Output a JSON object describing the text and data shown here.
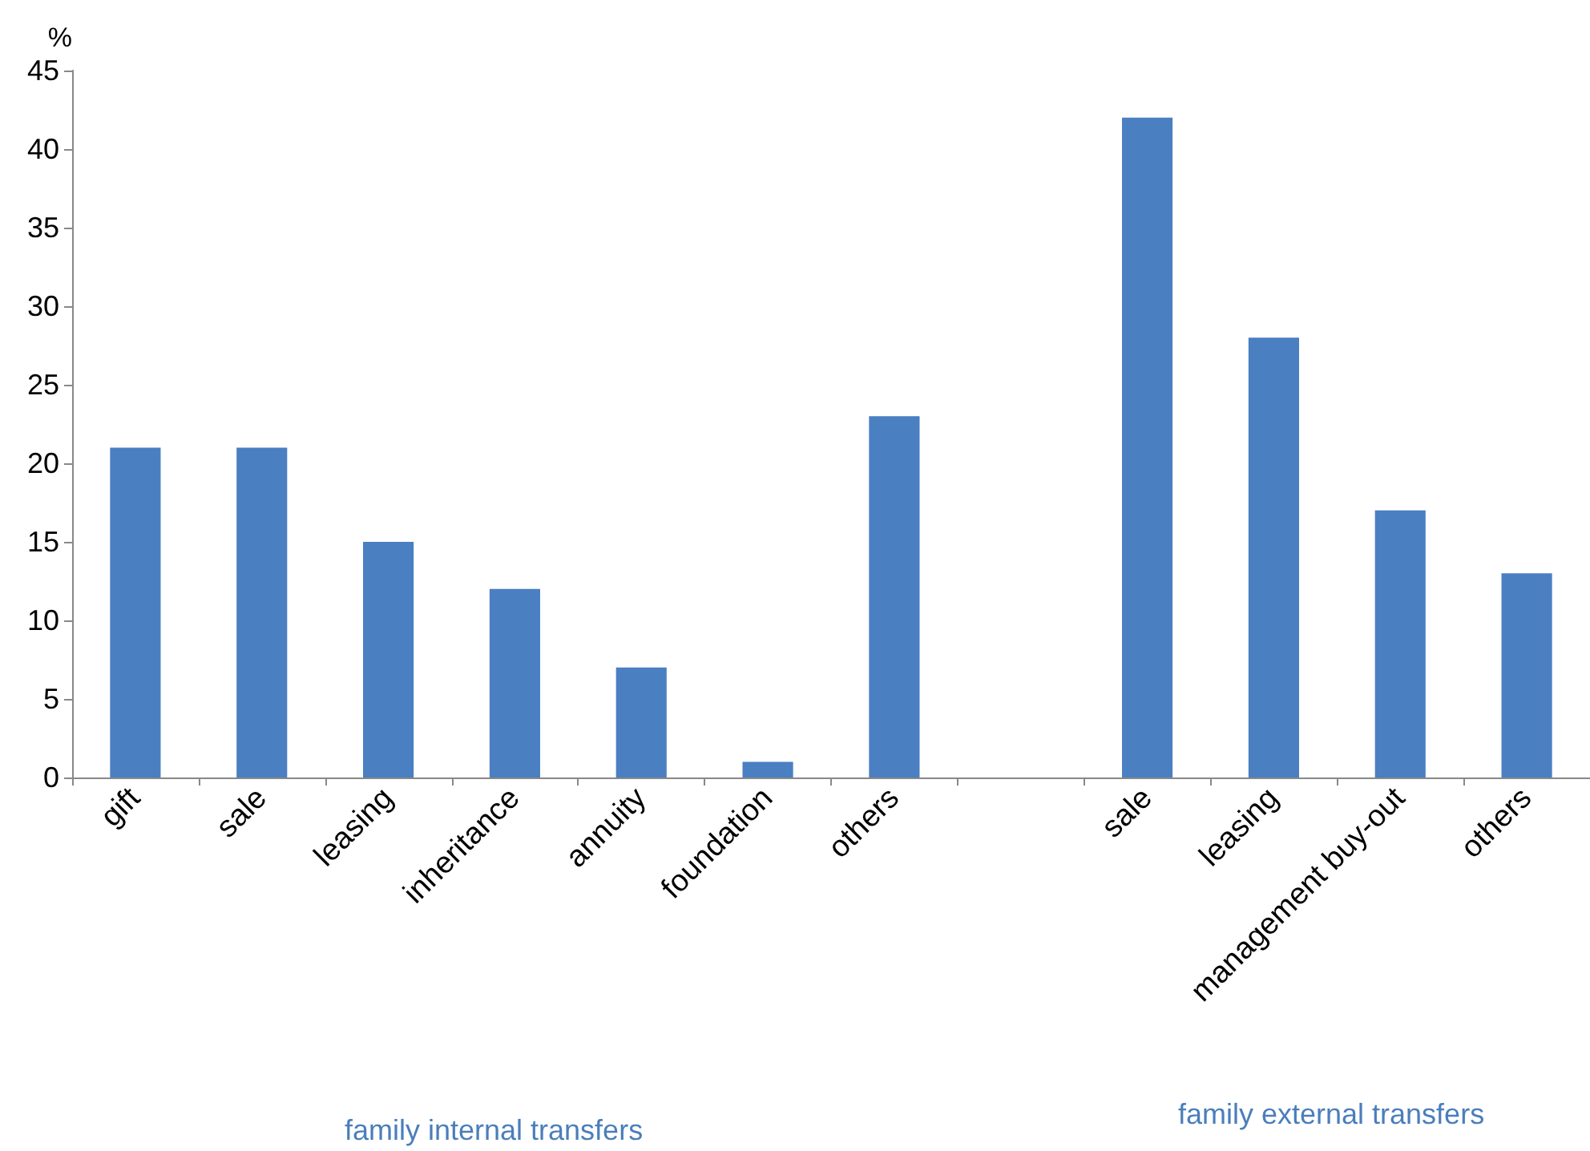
{
  "chart_data": {
    "type": "bar",
    "ylabel": "%",
    "categories": [
      "gift",
      "sale",
      "leasing",
      "inheritance",
      "annuity",
      "foundation",
      "others",
      null,
      "sale",
      "leasing",
      "management buy-out",
      "others"
    ],
    "values": [
      21,
      21,
      15,
      12,
      7,
      1,
      23,
      null,
      42,
      28,
      17,
      13
    ],
    "color": "#4a7fc2",
    "ylim": [
      0,
      45
    ],
    "yticks": [
      0,
      5,
      10,
      15,
      20,
      25,
      30,
      35,
      40,
      45
    ],
    "grid": false,
    "annotations": [
      "family internal transfers",
      "family external transfers"
    ]
  }
}
